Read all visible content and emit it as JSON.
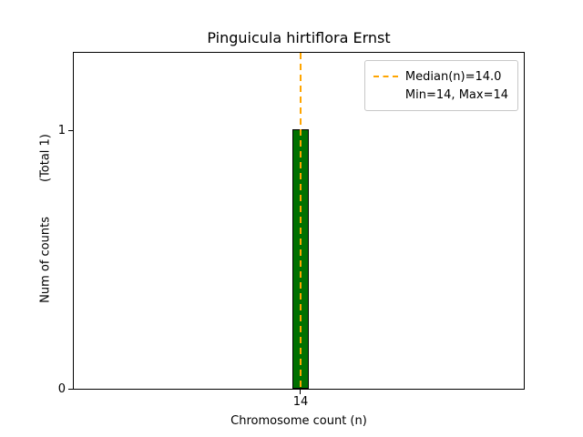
{
  "chart_data": {
    "type": "bar",
    "title": "Pinguicula hirtiflora Ernst",
    "xlabel": "Chromosome count (n)",
    "ylabel": "Num of counts",
    "total_label": "(Total 1)",
    "categories": [
      14
    ],
    "values": [
      1
    ],
    "bar_color": "#007000",
    "bar_edge_color": "#000000",
    "median_line": {
      "value": 14.0,
      "color": "#FFA500",
      "style": "dashed",
      "orientation": "vertical"
    },
    "xtick_labels": [
      "14"
    ],
    "ytick_labels": [
      "0",
      "1"
    ],
    "ylim": [
      0,
      1.3
    ],
    "xlim_note": "single bar centered at x=14",
    "grid": false,
    "legend_position": "upper right",
    "legend_entries": [
      {
        "symbol": "dashed-orange-line",
        "label": "Median(n)=14.0"
      },
      {
        "symbol": "none",
        "label": "Min=14, Max=14"
      }
    ]
  }
}
